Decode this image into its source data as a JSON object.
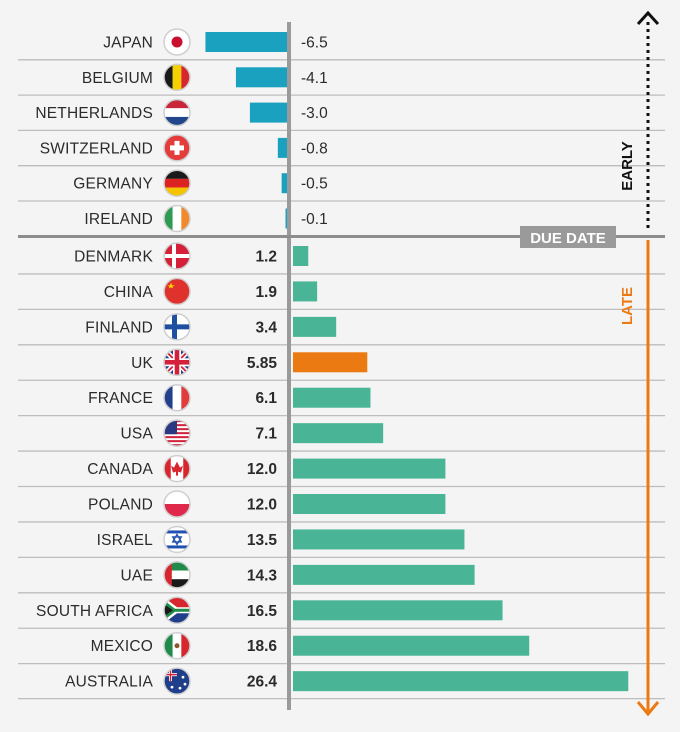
{
  "chart_data": {
    "type": "bar",
    "orientation": "horizontal",
    "categories": [
      "JAPAN",
      "BELGIUM",
      "NETHERLANDS",
      "SWITZERLAND",
      "GERMANY",
      "IRELAND",
      "DENMARK",
      "CHINA",
      "FINLAND",
      "UK",
      "FRANCE",
      "USA",
      "CANADA",
      "POLAND",
      "ISRAEL",
      "UAE",
      "SOUTH AFRICA",
      "MEXICO",
      "AUSTRALIA"
    ],
    "values": [
      -6.5,
      -4.1,
      -3.0,
      -0.8,
      -0.5,
      -0.1,
      1.2,
      1.9,
      3.4,
      5.85,
      6.1,
      7.1,
      12.0,
      12.0,
      13.5,
      14.3,
      16.5,
      18.6,
      26.4
    ],
    "value_labels": [
      "-6.5",
      "-4.1",
      "-3.0",
      "-0.8",
      "-0.5",
      "-0.1",
      "1.2",
      "1.9",
      "3.4",
      "5.85",
      "6.1",
      "7.1",
      "12.0",
      "12.0",
      "13.5",
      "14.3",
      "16.5",
      "18.6",
      "26.4"
    ],
    "flags": [
      "japan-flag",
      "belgium-flag",
      "netherlands-flag",
      "switzerland-flag",
      "germany-flag",
      "ireland-flag",
      "denmark-flag",
      "china-flag",
      "finland-flag",
      "uk-flag",
      "france-flag",
      "usa-flag",
      "canada-flag",
      "poland-flag",
      "israel-flag",
      "uae-flag",
      "south-africa-flag",
      "mexico-flag",
      "australia-flag"
    ],
    "highlight": "UK",
    "colors": {
      "negative": "#1aa1c0",
      "positive": "#4ab596",
      "highlight": "#ec7a12",
      "axis": "#9a9a9a",
      "late_arrow": "#ec7a12",
      "early_arrow": "#111111"
    },
    "axis_labels": {
      "due_date": "DUE DATE",
      "early": "EARLY",
      "late": "LATE"
    },
    "grid": true
  }
}
